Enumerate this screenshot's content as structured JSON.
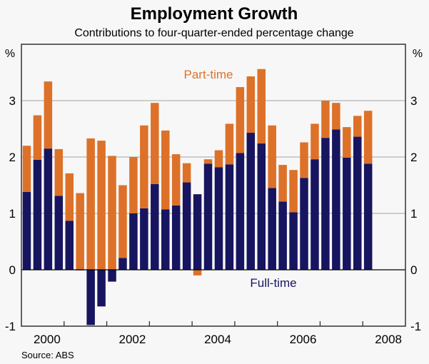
{
  "chart_data": {
    "type": "bar",
    "stacked": true,
    "title": "Employment Growth",
    "subtitle": "Contributions to four-quarter-ended percentage change",
    "ylabel_left": "%",
    "ylabel_right": "%",
    "ylim": [
      -1,
      4
    ],
    "yticks": [
      "-1",
      "0",
      "1",
      "2",
      "3"
    ],
    "ytick_values": [
      -1,
      0,
      1,
      2,
      3
    ],
    "xtick_labels": [
      "2000",
      "2002",
      "2004",
      "2006",
      "2008"
    ],
    "start_year": 2000,
    "grid": true,
    "source": "Source: ABS",
    "categories": [
      "2000Q1",
      "2000Q2",
      "2000Q3",
      "2000Q4",
      "2001Q1",
      "2001Q2",
      "2001Q3",
      "2001Q4",
      "2002Q1",
      "2002Q2",
      "2002Q3",
      "2002Q4",
      "2003Q1",
      "2003Q2",
      "2003Q3",
      "2003Q4",
      "2004Q1",
      "2004Q2",
      "2004Q3",
      "2004Q4",
      "2005Q1",
      "2005Q2",
      "2005Q3",
      "2005Q4",
      "2006Q1",
      "2006Q2",
      "2006Q3",
      "2006Q4",
      "2007Q1",
      "2007Q2",
      "2007Q3",
      "2007Q4",
      "2008Q1"
    ],
    "series": [
      {
        "name": "Full-time",
        "color": "#17155f",
        "values": [
          1.38,
          1.95,
          2.15,
          1.31,
          0.87,
          -0.01,
          -0.98,
          -0.65,
          -0.21,
          0.21,
          1.0,
          1.09,
          1.52,
          1.07,
          1.14,
          1.55,
          1.34,
          1.88,
          1.82,
          1.87,
          2.07,
          2.43,
          2.24,
          1.45,
          1.21,
          1.02,
          1.63,
          1.96,
          2.34,
          2.49,
          1.99,
          2.36,
          1.88
        ]
      },
      {
        "name": "Part-time",
        "color": "#dd7129",
        "values": [
          0.82,
          0.79,
          1.19,
          0.83,
          0.84,
          1.36,
          2.33,
          2.29,
          2.02,
          1.29,
          1.0,
          1.47,
          1.44,
          1.4,
          0.91,
          0.34,
          -0.1,
          0.08,
          0.3,
          0.72,
          1.17,
          1.0,
          1.32,
          1.11,
          0.65,
          0.75,
          0.63,
          0.63,
          0.66,
          0.47,
          0.54,
          0.37,
          0.94
        ]
      }
    ]
  }
}
